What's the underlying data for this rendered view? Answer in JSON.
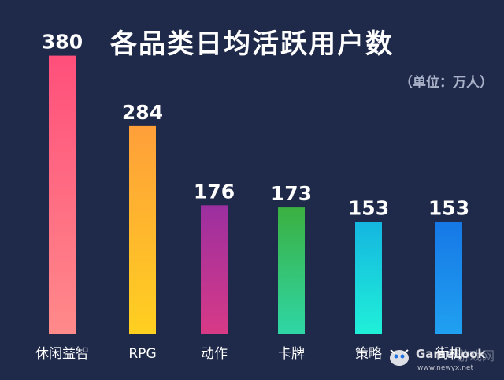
{
  "chart_data": {
    "type": "bar",
    "title": "各品类日均活跃用户数",
    "unit_note": "（单位：万人）",
    "categories": [
      "休闲益智",
      "RPG",
      "动作",
      "卡牌",
      "策略",
      "街机"
    ],
    "values": [
      380,
      284,
      176,
      173,
      153,
      153
    ],
    "ylim": [
      0,
      400
    ],
    "grid": false,
    "legend": "none",
    "bar_gradients": [
      [
        "#ff4f7b",
        "#ff8a8a"
      ],
      [
        "#ff9f3a",
        "#ffd020"
      ],
      [
        "#9b2fa0",
        "#d83a86"
      ],
      [
        "#3bb040",
        "#2fd6a6"
      ],
      [
        "#14b6e0",
        "#20f0d8"
      ],
      [
        "#1678e6",
        "#20a0f0"
      ]
    ]
  },
  "watermark": {
    "brand": "GameLook",
    "cn": "游戏网",
    "url": "www.newyx.net",
    "icon": "mascot-icon"
  },
  "colors": {
    "background": "#1f2a4a",
    "text": "#ffffff",
    "unit_text": "#a9b1c8"
  }
}
